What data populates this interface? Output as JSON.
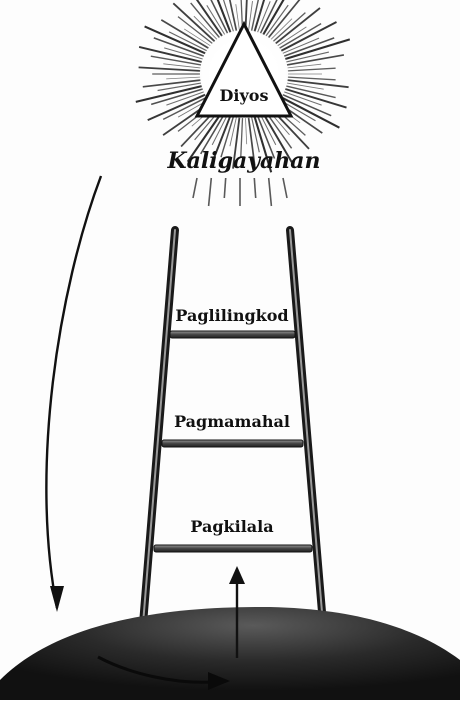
{
  "labels": {
    "apex": "Diyos",
    "happiness": "Kaligayahan",
    "rung_top": "Paglilingkod",
    "rung_middle": "Pagmamahal",
    "rung_bottom": "Pagkilala"
  },
  "colors": {
    "ink": "#111111",
    "ground": "#1e1e1e",
    "shade": "#2a2a2a",
    "glow": "#ffffff"
  }
}
